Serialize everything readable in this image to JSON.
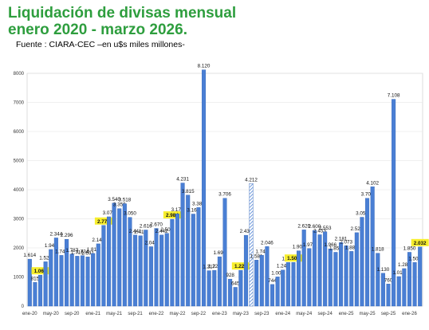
{
  "header": {
    "title_line1": "Liquidación de divisas mensual",
    "title_line2": "enero 2020 - marzo 2026",
    "subtitle": "Fuente : CIARA-CEC –en u$s miles millones-"
  },
  "colors": {
    "bar": "#4a7fd4",
    "bar_light": "#aac6ef",
    "title": "#2e9e3e",
    "highlight": "#f7ee2d"
  },
  "chart_data": {
    "type": "bar",
    "title": "",
    "xlabel": "",
    "ylabel": "",
    "ylim": [
      0,
      8000
    ],
    "yticks": [
      0,
      1000,
      2000,
      3000,
      4000,
      5000,
      6000,
      7000,
      8000
    ],
    "grid": true,
    "legend": "none",
    "x_tick_labels": [
      "ene-20",
      "may-20",
      "sep-20",
      "ene-21",
      "may-21",
      "sep-21",
      "ene-22",
      "may-22",
      "sep-22",
      "ene-23",
      "may-23",
      "sep-23",
      "ene-24",
      "may-24",
      "sep-24",
      "ene-25",
      "may-25",
      "sep-25",
      "ene-26"
    ],
    "values": [
      1614,
      815,
      1064,
      1524,
      1946,
      2344,
      1743,
      2296,
      1787,
      1716,
      1734,
      1691,
      1810,
      2140,
      2773,
      3070,
      3540,
      3350,
      3518,
      3050,
      2441,
      2416,
      2616,
      2042,
      2670,
      2442,
      2500,
      2984,
      3172,
      4231,
      3815,
      3164,
      3387,
      8120,
      1217,
      1228,
      1696,
      3706,
      928,
      645,
      1228,
      2435,
      4212,
      1581,
      1746,
      2046,
      744,
      1004,
      1240,
      1499,
      1501,
      1900,
      2620,
      1978,
      2600,
      2453,
      2553,
      1966,
      1850,
      2181,
      2073,
      1880,
      2524,
      3054,
      3706,
      4102,
      1818,
      1130,
      760,
      7108,
      1015,
      1289,
      1850,
      1500,
      2032
    ],
    "highlighted": [
      2,
      14,
      27,
      40,
      50,
      74
    ],
    "light_bars": [
      42
    ]
  }
}
